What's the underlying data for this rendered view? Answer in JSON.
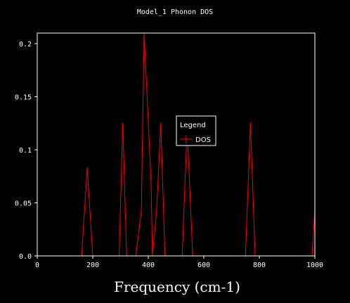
{
  "colors": {
    "background": "#000000",
    "axis": "#ffffff",
    "series": "#ff0000",
    "text": "#ffffff"
  },
  "chart_data": {
    "type": "line",
    "title": "Model_1 Phonon DOS",
    "xlabel": "Frequency (cm-1)",
    "ylabel": "",
    "xlim": [
      0,
      1000
    ],
    "ylim": [
      0,
      0.21
    ],
    "xticks": [
      0,
      200,
      400,
      600,
      800,
      1000
    ],
    "yticks": [
      0.0,
      0.05,
      0.1,
      0.15,
      0.2
    ],
    "xtick_labels": [
      "0",
      "200",
      "400",
      "600",
      "800",
      "1000"
    ],
    "ytick_labels": [
      "0.0",
      "0.05",
      "0.1",
      "0.15",
      "0.2"
    ],
    "grid": false,
    "legend": {
      "title": "Legend",
      "position": "center-right",
      "entries": [
        "DOS"
      ]
    },
    "series": [
      {
        "name": "DOS",
        "color": "#ff0000",
        "x": [
          0,
          160,
          180,
          200,
          295,
          308,
          322,
          355,
          375,
          385,
          410,
          415,
          430,
          445,
          460,
          522,
          540,
          560,
          750,
          768,
          785,
          990,
          1000
        ],
        "y": [
          0,
          0,
          0.083,
          0,
          0,
          0.125,
          0,
          0,
          0.042,
          0.21,
          0.07,
          0,
          0.042,
          0.125,
          0,
          0,
          0.12,
          0,
          0,
          0.125,
          0,
          0,
          0.043
        ]
      }
    ]
  }
}
